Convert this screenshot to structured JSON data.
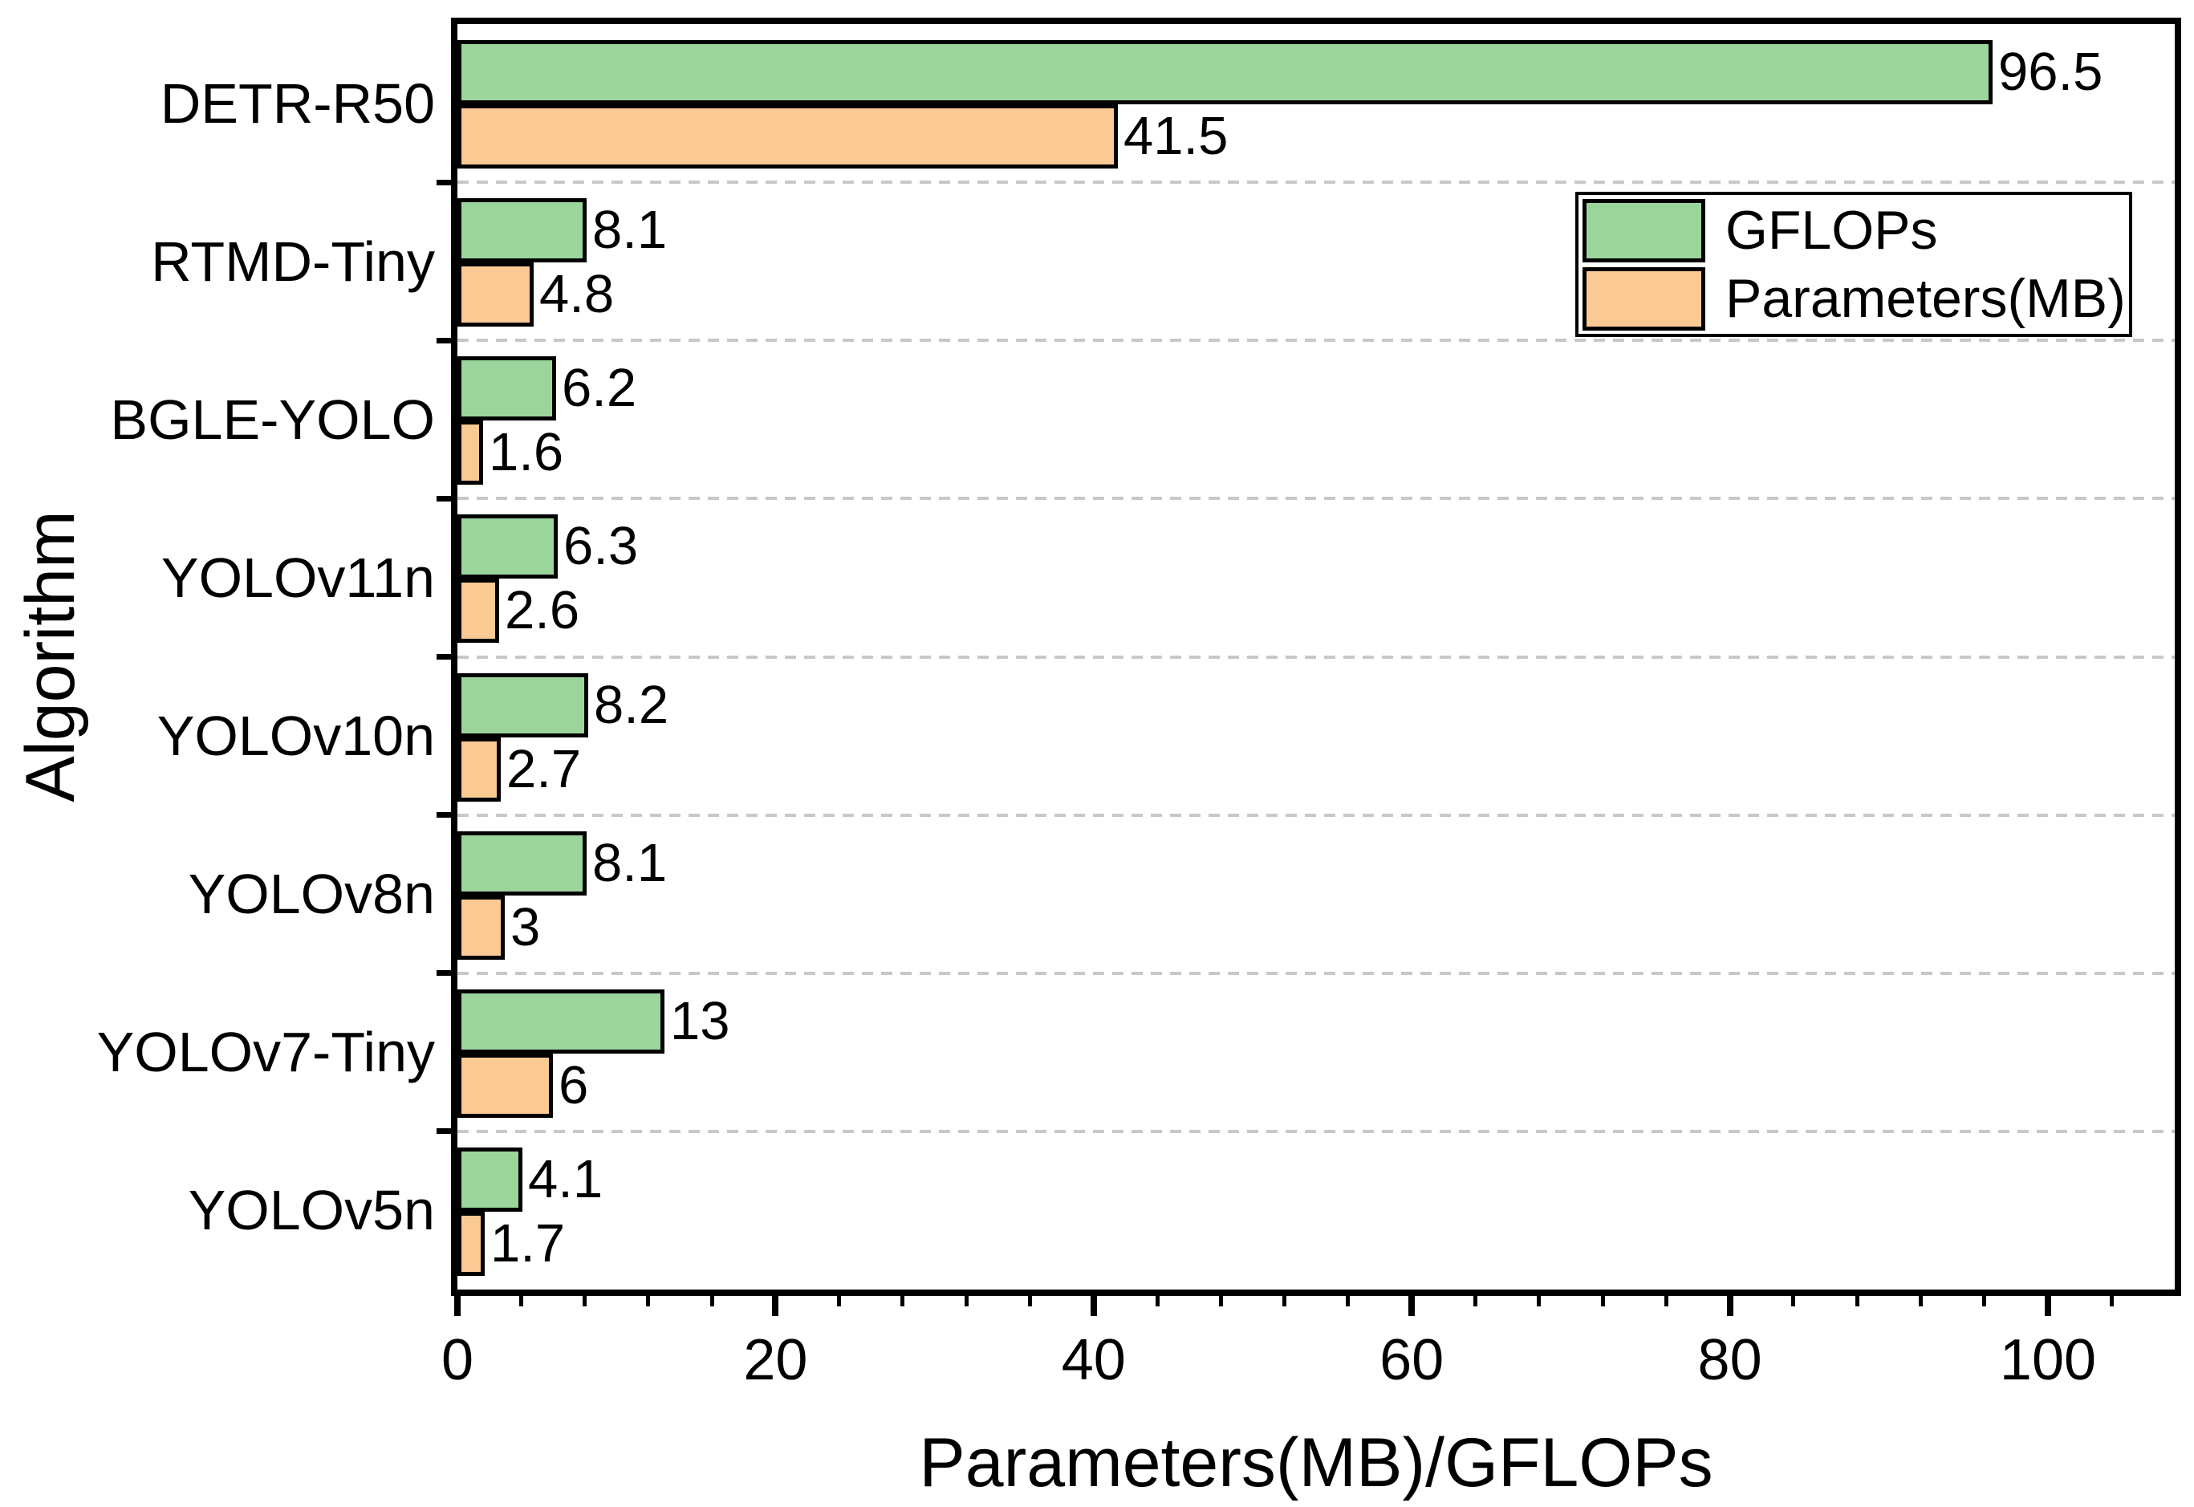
{
  "chart_data": {
    "type": "bar",
    "orientation": "horizontal",
    "xlabel": "Parameters(MB)/GFLOPs",
    "ylabel": "Algorithm",
    "categories": [
      "DETR-R50",
      "RTMD-Tiny",
      "BGLE-YOLO",
      "YOLOv11n",
      "YOLOv10n",
      "YOLOv8n",
      "YOLOv7-Tiny",
      "YOLOv5n"
    ],
    "series": [
      {
        "name": "GFLOPs",
        "color": "#9CD59C",
        "values": [
          96.5,
          8.1,
          6.2,
          6.3,
          8.2,
          8.1,
          13,
          4.1
        ]
      },
      {
        "name": "Parameters(MB)",
        "color": "#FBC994",
        "values": [
          41.5,
          4.8,
          1.6,
          2.6,
          2.7,
          3,
          6,
          1.7
        ]
      }
    ],
    "bar_value_labels_shown": true,
    "xlim": [
      0,
      108
    ],
    "x_major_ticks": [
      0,
      20,
      40,
      60,
      80,
      100
    ],
    "x_minor_tick_step": 4,
    "grid": {
      "style": "dashed",
      "color": "#C8C8C8",
      "between_categories": true
    },
    "legend": {
      "position": "upper-right",
      "entries": [
        "GFLOPs",
        "Parameters(MB)"
      ]
    },
    "colors": {
      "bar_outline": "#000000",
      "axis": "#000000",
      "text": "#000000",
      "background": "#FFFFFF"
    }
  }
}
